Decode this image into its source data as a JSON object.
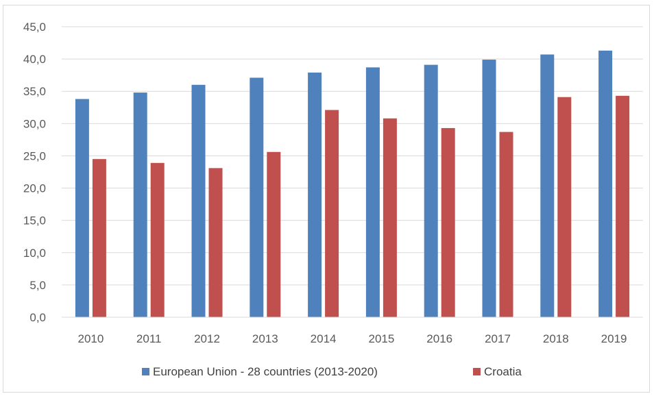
{
  "chart_data": {
    "type": "bar",
    "title": "",
    "xlabel": "",
    "ylabel": "",
    "categories": [
      "2010",
      "2011",
      "2012",
      "2013",
      "2014",
      "2015",
      "2016",
      "2017",
      "2018",
      "2019"
    ],
    "series": [
      {
        "name": "European Union - 28 countries (2013-2020)",
        "color": "#4f81bd",
        "values": [
          33.8,
          34.8,
          36.0,
          37.1,
          37.9,
          38.7,
          39.1,
          39.9,
          40.7,
          41.3
        ]
      },
      {
        "name": "Croatia",
        "color": "#c0504d",
        "values": [
          24.5,
          23.9,
          23.1,
          25.6,
          32.1,
          30.8,
          29.3,
          28.7,
          34.1,
          34.3
        ]
      }
    ],
    "ylim": [
      0,
      45
    ],
    "ytick_step": 5,
    "ytick_labels": [
      "0,0",
      "5,0",
      "10,0",
      "15,0",
      "20,0",
      "25,0",
      "30,0",
      "35,0",
      "40,0",
      "45,0"
    ],
    "grid": true,
    "legend_position": "bottom"
  }
}
